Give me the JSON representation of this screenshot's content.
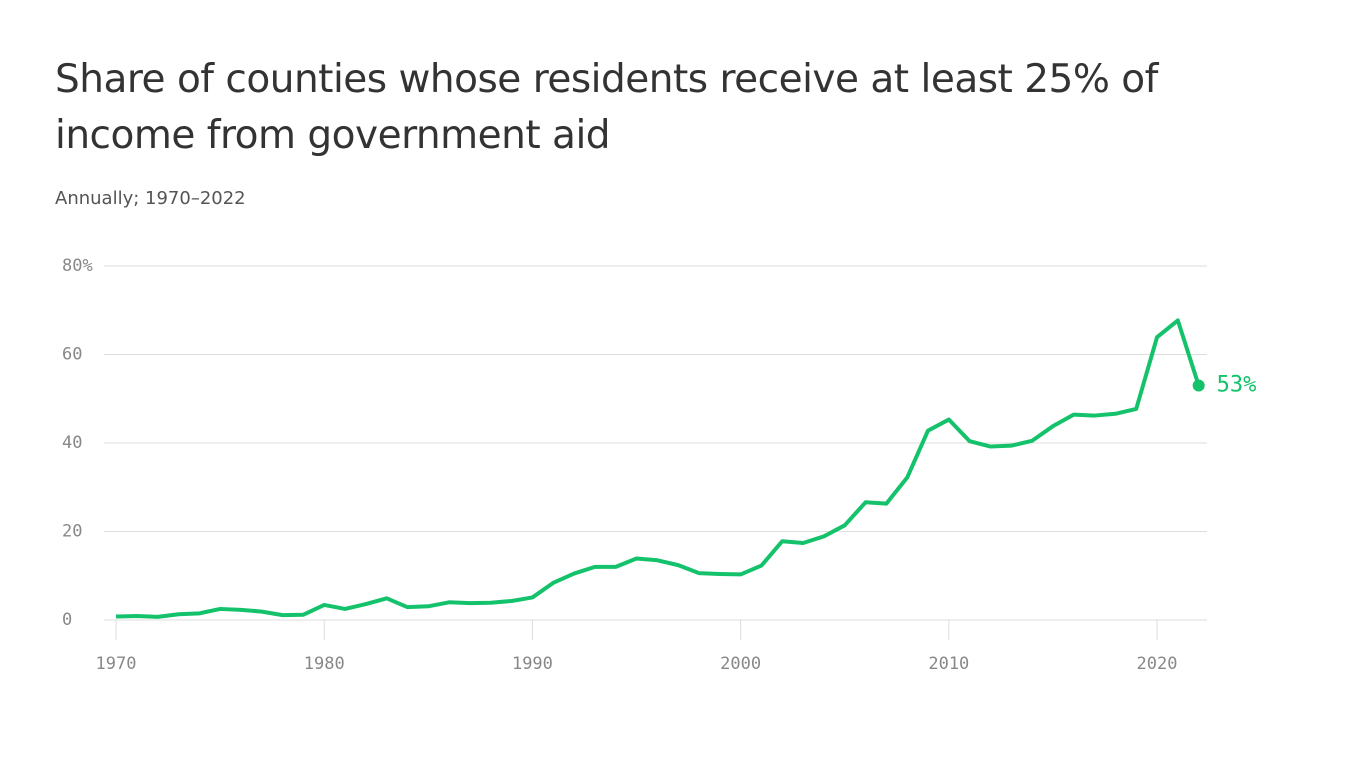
{
  "chart_data": {
    "type": "line",
    "title": "Share of counties whose residents receive at least 25% of income from government aid",
    "subtitle": "Annually; 1970–2022",
    "x": [
      1970,
      1971,
      1972,
      1973,
      1974,
      1975,
      1976,
      1977,
      1978,
      1979,
      1980,
      1981,
      1982,
      1983,
      1984,
      1985,
      1986,
      1987,
      1988,
      1989,
      1990,
      1991,
      1992,
      1993,
      1994,
      1995,
      1996,
      1997,
      1998,
      1999,
      2000,
      2001,
      2002,
      2003,
      2004,
      2005,
      2006,
      2007,
      2008,
      2009,
      2010,
      2011,
      2012,
      2013,
      2014,
      2015,
      2016,
      2017,
      2018,
      2019,
      2020,
      2021,
      2022
    ],
    "series": [
      {
        "color": "#14c26b",
        "values": [
          0.8,
          0.9,
          0.7,
          1.3,
          1.5,
          2.5,
          2.3,
          1.9,
          1.1,
          1.2,
          3.4,
          2.5,
          3.6,
          4.9,
          2.9,
          3.1,
          4.0,
          3.8,
          3.9,
          4.3,
          5.1,
          8.4,
          10.5,
          12.0,
          12.0,
          13.9,
          13.5,
          12.4,
          10.6,
          10.4,
          10.3,
          12.3,
          17.8,
          17.4,
          18.9,
          21.4,
          26.6,
          26.3,
          32.2,
          42.8,
          45.3,
          40.4,
          39.2,
          39.4,
          40.5,
          43.8,
          46.4,
          46.2,
          46.6,
          47.7,
          63.9,
          67.7,
          53
        ],
        "value_labels": [
          null,
          null,
          null,
          null,
          null,
          null,
          null,
          null,
          null,
          null,
          null,
          null,
          null,
          null,
          null,
          null,
          null,
          null,
          null,
          null,
          null,
          null,
          null,
          null,
          null,
          null,
          null,
          null,
          null,
          null,
          null,
          null,
          null,
          null,
          null,
          null,
          null,
          null,
          null,
          null,
          null,
          null,
          null,
          null,
          null,
          null,
          null,
          null,
          null,
          null,
          null,
          null,
          "53%"
        ]
      }
    ],
    "xlim": [
      1969.23,
      2022.4
    ],
    "xticks": [
      1970,
      1980,
      1990,
      2000,
      2010,
      2020
    ],
    "ylim": [
      0,
      80
    ],
    "yticks": [
      0,
      20,
      40,
      60,
      {
        "value": 80,
        "label": "80%"
      }
    ],
    "grid": true
  }
}
